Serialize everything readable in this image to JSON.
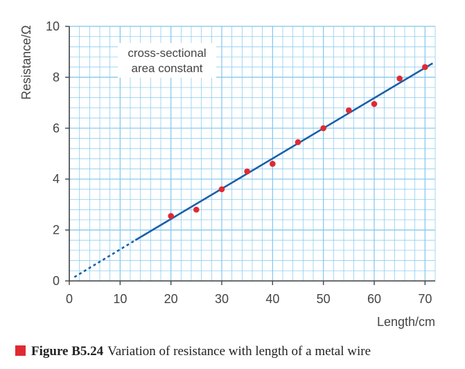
{
  "chart_data": {
    "type": "scatter",
    "xlabel": "Length/cm",
    "ylabel": "Resistance/Ω",
    "xlim": [
      0,
      72
    ],
    "ylim": [
      0,
      10
    ],
    "x_ticks": [
      0,
      10,
      20,
      30,
      40,
      50,
      60,
      70
    ],
    "y_ticks": [
      0,
      2,
      4,
      6,
      8,
      10
    ],
    "grid": true,
    "series": [
      {
        "marker_color": "#e02a32",
        "points": [
          {
            "x": 20,
            "y": 2.55
          },
          {
            "x": 25,
            "y": 2.8
          },
          {
            "x": 30,
            "y": 3.6
          },
          {
            "x": 35,
            "y": 4.3
          },
          {
            "x": 40,
            "y": 4.6
          },
          {
            "x": 45,
            "y": 5.45
          },
          {
            "x": 50,
            "y": 6.0
          },
          {
            "x": 55,
            "y": 6.7
          },
          {
            "x": 60,
            "y": 6.95
          },
          {
            "x": 65,
            "y": 7.95
          },
          {
            "x": 70,
            "y": 8.4
          }
        ]
      }
    ],
    "best_fit_line": {
      "color": "#1a5fa8",
      "solid_from": [
        13,
        1.6
      ],
      "solid_to": [
        71.5,
        8.55
      ],
      "dashed_from": [
        1,
        0.15
      ],
      "dashed_to": [
        13,
        1.6
      ]
    },
    "annotation": [
      "cross-sectional",
      "area constant"
    ],
    "grid_color": "#7ec6ee"
  },
  "caption": {
    "figure_number": "Figure B5.24",
    "text": "Variation of resistance with length of a metal wire",
    "marker_color": "#e02a32"
  }
}
